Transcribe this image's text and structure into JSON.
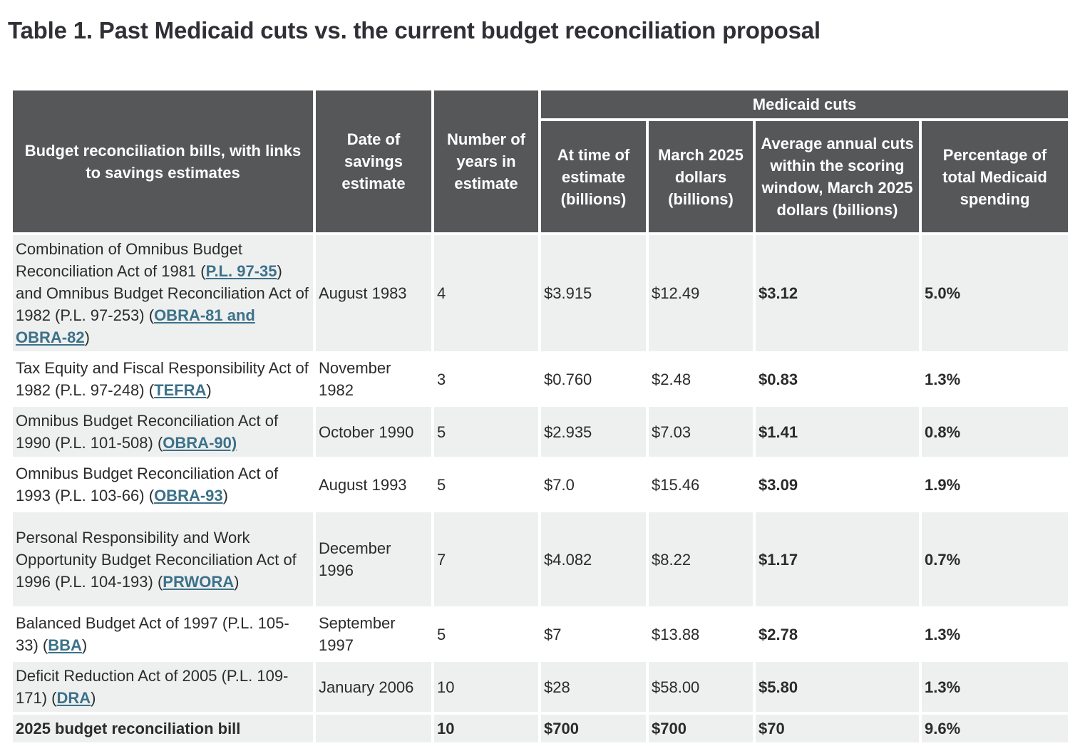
{
  "title": "Table 1. Past Medicaid cuts vs. the current budget reconciliation proposal",
  "headers": {
    "bill": "Budget reconciliation bills, with links to savings estimates",
    "date": "Date of savings estimate",
    "years": "Number of years in estimate",
    "group": "Medicaid cuts",
    "at_time": "At time of estimate (billions)",
    "march2025": "March 2025 dollars (billions)",
    "average": "Average annual cuts within the scoring window, March 2025 dollars (billions)",
    "percent": "Percentage of total Medicaid spending"
  },
  "rows": [
    {
      "bill": {
        "p1": "Combination of Omnibus Budget Reconciliation Act of 1981 (",
        "l1": "P.L. 97-35",
        "p2": ") and Omnibus Budget Reconciliation Act of 1982 (P.L. 97-253) (",
        "l2": "OBRA-81 and OBRA-82",
        "p3": ")"
      },
      "date": "August 1983",
      "years": "4",
      "at_time": "$3.915",
      "march2025": "$12.49",
      "average": "$3.12",
      "percent": "5.0%"
    },
    {
      "bill": {
        "p1": "Tax Equity and Fiscal Responsibility Act of 1982 (P.L. 97-248) (",
        "l1": "TEFRA",
        "p2": ")"
      },
      "date": "November 1982",
      "years": "3",
      "at_time": "$0.760",
      "march2025": "$2.48",
      "average": "$0.83",
      "percent": "1.3%"
    },
    {
      "bill": {
        "p1": "Omnibus Budget Reconciliation Act of 1990 (P.L. 101-508) (",
        "l1": "OBRA-90)"
      },
      "date": "October 1990",
      "years": "5",
      "at_time": "$2.935",
      "march2025": "$7.03",
      "average": "$1.41",
      "percent": "0.8%"
    },
    {
      "bill": {
        "p1": "Omnibus Budget Reconciliation Act of 1993 (P.L. 103-66) (",
        "l1": "OBRA-93",
        "p2": ")"
      },
      "date": "August 1993",
      "years": "5",
      "at_time": "$7.0",
      "march2025": "$15.46",
      "average": "$3.09",
      "percent": "1.9%"
    },
    {
      "bill": {
        "p1": "Personal Responsibility and Work Opportunity Budget Reconciliation Act of 1996 (P.L. 104-193) (",
        "l1": "PRWORA",
        "p2": ")"
      },
      "date": "December 1996",
      "years": "7",
      "at_time": "$4.082",
      "march2025": "$8.22",
      "average": "$1.17",
      "percent": "0.7%"
    },
    {
      "bill": {
        "p1": "Balanced Budget Act of 1997 (P.L. 105-33) (",
        "l1": "BBA",
        "p2": ")"
      },
      "date": "September 1997",
      "years": "5",
      "at_time": "$7",
      "march2025": "$13.88",
      "average": "$2.78",
      "percent": "1.3%"
    },
    {
      "bill": {
        "p1": "Deficit Reduction Act of 2005 (P.L. 109-171) (",
        "l1": "DRA",
        "p2": ")"
      },
      "date": "January 2006",
      "years": "10",
      "at_time": "$28",
      "march2025": "$58.00",
      "average": "$5.80",
      "percent": "1.3%"
    }
  ],
  "total": {
    "bill": "2025 budget reconciliation bill",
    "date": "",
    "years": "10",
    "at_time": "$700",
    "march2025": "$700",
    "average": "$70",
    "percent": "9.6%"
  },
  "colors": {
    "header_bg": "#565759",
    "header_text": "#ffffff",
    "row_alt_bg": "#eef0f0",
    "link": "#3d7189"
  }
}
